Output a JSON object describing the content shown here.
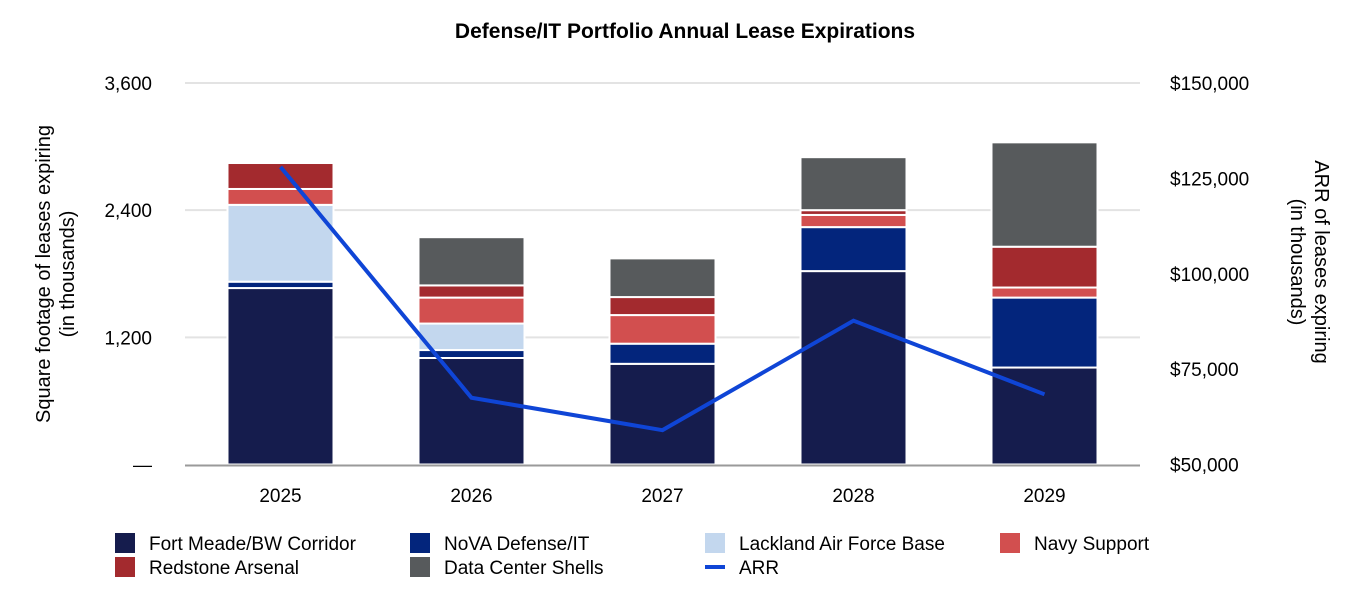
{
  "chart_data": {
    "type": "bar",
    "stacked": true,
    "title": "Defense/IT Portfolio Annual Lease Expirations",
    "ylabel": "Square footage of leases expiring (in thousands)",
    "y2label": "ARR of leases expiring (in thousands)",
    "ylim": [
      0,
      3600
    ],
    "y2lim": [
      50000,
      150000
    ],
    "yticks": [
      "—",
      "1,200",
      "2,400",
      "3,600"
    ],
    "ytick_values": [
      0,
      1200,
      2400,
      3600
    ],
    "y2ticks": [
      "$50,000",
      "$75,000",
      "$100,000",
      "$125,000",
      "$150,000"
    ],
    "y2tick_values": [
      50000,
      75000,
      100000,
      125000,
      150000
    ],
    "grid": true,
    "legend_position": "bottom",
    "categories": [
      "2025",
      "2026",
      "2027",
      "2028",
      "2029"
    ],
    "series": [
      {
        "name": "Fort Meade/BW Corridor",
        "color": "#151c4d",
        "values": [
          1665,
          1005,
          950,
          1825,
          915
        ]
      },
      {
        "name": "NoVA Defense/IT",
        "color": "#03257c",
        "values": [
          60,
          75,
          190,
          415,
          660
        ]
      },
      {
        "name": "Lackland Air Force Base",
        "color": "#c3d7ee",
        "values": [
          725,
          250,
          0,
          0,
          0
        ]
      },
      {
        "name": "Navy Support",
        "color": "#d24f4f",
        "values": [
          150,
          245,
          270,
          115,
          95
        ]
      },
      {
        "name": "Redstone Arsenal",
        "color": "#a32a2e",
        "values": [
          245,
          115,
          170,
          45,
          385
        ]
      },
      {
        "name": "Data Center Shells",
        "color": "#575a5c",
        "values": [
          0,
          455,
          365,
          500,
          985
        ]
      }
    ],
    "line_series": {
      "name": "ARR",
      "color": "#0f45d6",
      "axis": "right",
      "values": [
        128000,
        67500,
        59000,
        87700,
        68400
      ]
    }
  }
}
